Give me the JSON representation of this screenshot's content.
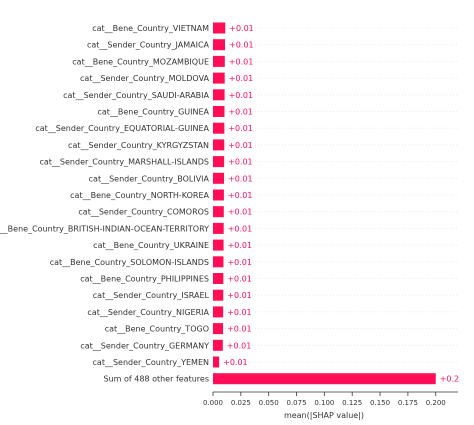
{
  "colors": {
    "bar": "#ff0d57",
    "bar_label": "#ff0d57",
    "grid": "#e6e6e6",
    "axis": "#333333"
  },
  "chart_data": {
    "type": "bar",
    "orientation": "horizontal",
    "categories": [
      "cat__Bene_Country_VIETNAM",
      "cat__Sender_Country_JAMAICA",
      "cat__Bene_Country_MOZAMBIQUE",
      "cat__Sender_Country_MOLDOVA",
      "cat__Sender_Country_SAUDI-ARABIA",
      "cat__Bene_Country_GUINEA",
      "cat__Sender_Country_EQUATORIAL-GUINEA",
      "cat__Sender_Country_KYRGYZSTAN",
      "cat__Sender_Country_MARSHALL-ISLANDS",
      "cat__Sender_Country_BOLIVIA",
      "cat__Bene_Country_NORTH-KOREA",
      "cat__Sender_Country_COMOROS",
      "cat__Bene_Country_BRITISH-INDIAN-OCEAN-TERRITORY",
      "cat__Bene_Country_UKRAINE",
      "cat__Bene_Country_SOLOMON-ISLANDS",
      "cat__Bene_Country_PHILIPPINES",
      "cat__Sender_Country_ISRAEL",
      "cat__Sender_Country_NIGERIA",
      "cat__Bene_Country_TOGO",
      "cat__Sender_Country_GERMANY",
      "cat__Sender_Country_YEMEN",
      "Sum of 488 other features"
    ],
    "values": [
      0.011,
      0.0108,
      0.0106,
      0.0105,
      0.0104,
      0.0103,
      0.0102,
      0.0101,
      0.01,
      0.0099,
      0.0098,
      0.0097,
      0.0096,
      0.0095,
      0.0094,
      0.0093,
      0.0092,
      0.0091,
      0.009,
      0.0088,
      0.0055,
      0.2
    ],
    "data_labels": [
      "+0.01",
      "+0.01",
      "+0.01",
      "+0.01",
      "+0.01",
      "+0.01",
      "+0.01",
      "+0.01",
      "+0.01",
      "+0.01",
      "+0.01",
      "+0.01",
      "+0.01",
      "+0.01",
      "+0.01",
      "+0.01",
      "+0.01",
      "+0.01",
      "+0.01",
      "+0.01",
      "+0.01",
      "+0.2"
    ],
    "xlabel": "mean(|SHAP value|)",
    "xlim": [
      0,
      0.22
    ],
    "xticks": [
      0.0,
      0.025,
      0.05,
      0.075,
      0.1,
      0.125,
      0.15,
      0.175,
      0.2
    ],
    "xtick_labels": [
      "0.000",
      "0.025",
      "0.050",
      "0.075",
      "0.100",
      "0.125",
      "0.150",
      "0.175",
      "0.200"
    ],
    "grid": "horizontal-row-lines"
  }
}
